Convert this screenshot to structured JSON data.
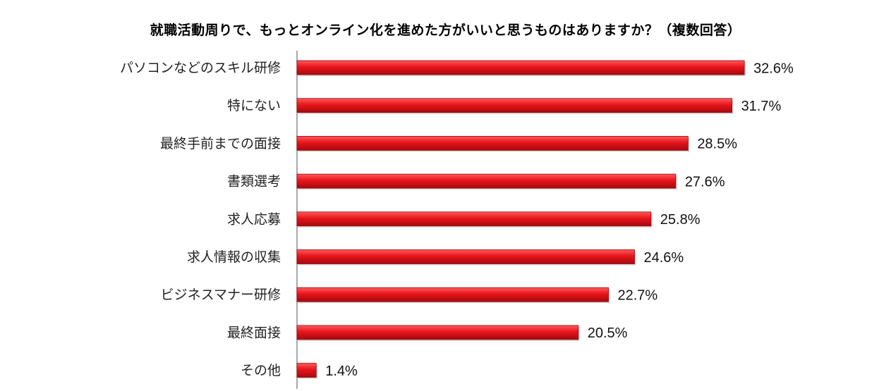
{
  "chart_data": {
    "type": "bar",
    "orientation": "horizontal",
    "title": "就職活動周りで、もっとオンライン化を進めた方がいいと思うものはありますか？（複数回答）",
    "categories": [
      "パソコンなどのスキル研修",
      "特にない",
      "最終手前までの面接",
      "書類選考",
      "求人応募",
      "求人情報の収集",
      "ビジネスマナー研修",
      "最終面接",
      "その他"
    ],
    "values": [
      32.6,
      31.7,
      28.5,
      27.6,
      25.8,
      24.6,
      22.7,
      20.5,
      1.4
    ],
    "value_labels": [
      "32.6%",
      "31.7%",
      "28.5%",
      "27.6%",
      "25.8%",
      "24.6%",
      "22.7%",
      "20.5%",
      "1.4%"
    ],
    "unit": "%",
    "xlim": [
      0,
      35
    ],
    "bar_color": "#e8141b",
    "grid": false,
    "legend": "none"
  }
}
